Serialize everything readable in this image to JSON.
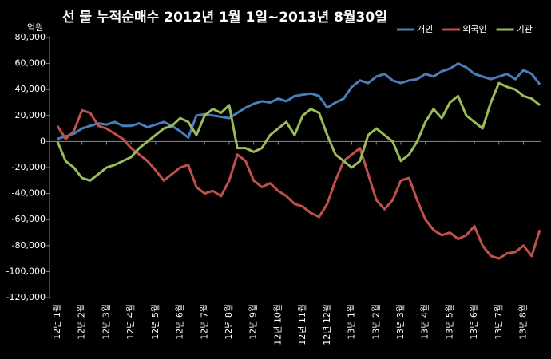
{
  "chart_data": {
    "type": "line",
    "title": "선 물 누적순매수 2012년 1월 1일~2013년 8월30일",
    "y_label": "억원",
    "categories": [
      "12년 1월",
      null,
      null,
      "12년 2월",
      null,
      null,
      "12년 3월",
      null,
      null,
      "12년 4월",
      null,
      null,
      "12년 5월",
      null,
      null,
      "12년 6월",
      null,
      null,
      "12년 7월",
      null,
      null,
      "12년 8월",
      null,
      null,
      "12년 9월",
      null,
      null,
      "12년 10월",
      null,
      null,
      "12년 11월",
      null,
      null,
      "12년 12월",
      null,
      null,
      "13년 1월",
      null,
      null,
      "13년 2월",
      null,
      null,
      "13년 3월",
      null,
      null,
      "13년 4월",
      null,
      null,
      "13년 5월",
      null,
      null,
      "13년 6월",
      null,
      null,
      "13년 7월",
      null,
      null,
      "13년 8월",
      null,
      null
    ],
    "series": [
      {
        "name": "개인",
        "color": "#4a7ebb",
        "values": [
          2000,
          4000,
          6000,
          10000,
          12000,
          14000,
          13000,
          15000,
          12000,
          12000,
          14000,
          11000,
          13000,
          15000,
          12000,
          8000,
          3000,
          20000,
          21000,
          20000,
          19000,
          18000,
          22000,
          26000,
          29000,
          31000,
          30000,
          33000,
          31000,
          35000,
          36000,
          37000,
          35000,
          26000,
          30000,
          33000,
          42000,
          47000,
          45000,
          50000,
          52000,
          47000,
          45000,
          47000,
          48000,
          52000,
          50000,
          54000,
          56000,
          60000,
          57000,
          52000,
          50000,
          48000,
          50000,
          52000,
          48000,
          55000,
          52000,
          44000
        ]
      },
      {
        "name": "외국인",
        "color": "#c0504d",
        "values": [
          12000,
          2000,
          8000,
          24000,
          22000,
          12000,
          10000,
          6000,
          2000,
          -5000,
          -10000,
          -15000,
          -22000,
          -30000,
          -25000,
          -20000,
          -18000,
          -35000,
          -40000,
          -38000,
          -42000,
          -30000,
          -10000,
          -15000,
          -30000,
          -35000,
          -32000,
          -38000,
          -42000,
          -48000,
          -50000,
          -55000,
          -58000,
          -48000,
          -30000,
          -15000,
          -10000,
          -5000,
          -25000,
          -45000,
          -52000,
          -45000,
          -30000,
          -28000,
          -45000,
          -60000,
          -68000,
          -72000,
          -70000,
          -75000,
          -72000,
          -65000,
          -80000,
          -88000,
          -90000,
          -86000,
          -85000,
          -80000,
          -88000,
          -68000
        ]
      },
      {
        "name": "기관",
        "color": "#9bbb59",
        "values": [
          0,
          -15000,
          -20000,
          -28000,
          -30000,
          -25000,
          -20000,
          -18000,
          -15000,
          -12000,
          -5000,
          0,
          5000,
          10000,
          12000,
          18000,
          15000,
          5000,
          20000,
          25000,
          22000,
          28000,
          -5000,
          -5000,
          -8000,
          -5000,
          5000,
          10000,
          15000,
          5000,
          20000,
          25000,
          22000,
          5000,
          -10000,
          -15000,
          -20000,
          -15000,
          5000,
          10000,
          5000,
          0,
          -15000,
          -10000,
          0,
          15000,
          25000,
          18000,
          30000,
          35000,
          20000,
          15000,
          10000,
          30000,
          45000,
          42000,
          40000,
          35000,
          33000,
          28000
        ]
      }
    ],
    "ylim": [
      -120000,
      80000
    ],
    "yticks": [
      {
        "value": 80000,
        "label": "80,000"
      },
      {
        "value": 60000,
        "label": "60,000"
      },
      {
        "value": 40000,
        "label": "40,000"
      },
      {
        "value": 20000,
        "label": "20,000"
      },
      0,
      {
        "value": -20000,
        "label": "-20,000"
      },
      {
        "value": -40000,
        "label": "-40,000"
      },
      {
        "value": -60000,
        "label": "-60,000"
      },
      {
        "value": -80000,
        "label": "-80,000"
      },
      {
        "value": -100000,
        "label": "-100,000"
      },
      {
        "value": -120000,
        "label": "-120,000"
      }
    ],
    "grid": false,
    "legend": "top-right"
  }
}
